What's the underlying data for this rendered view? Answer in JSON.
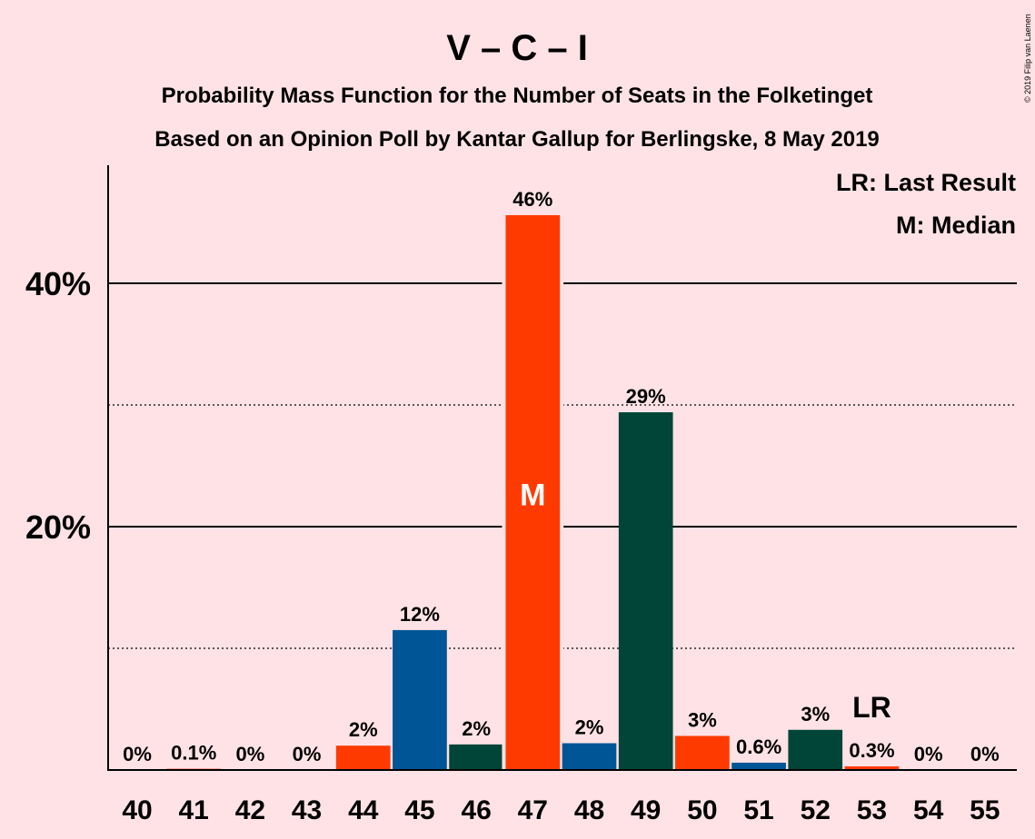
{
  "title": "V – C – I",
  "subtitle1": "Probability Mass Function for the Number of Seats in the Folketinget",
  "subtitle2": "Based on an Opinion Poll by Kantar Gallup for Berlingske, 8 May 2019",
  "copyright": "© 2019 Filip van Laenen",
  "legend": {
    "lr": "LR: Last Result",
    "median": "M: Median"
  },
  "median_marker": "M",
  "lr_marker": "LR",
  "colors": {
    "background": "#FFE2E6",
    "orange": "#FF3A00",
    "blue": "#005596",
    "green": "#004537"
  },
  "chart_data": {
    "type": "bar",
    "x": [
      40,
      41,
      42,
      43,
      44,
      45,
      46,
      47,
      48,
      49,
      50,
      51,
      52,
      53,
      54,
      55
    ],
    "values": [
      0,
      0.1,
      0,
      0,
      2.0,
      11.5,
      2.1,
      45.6,
      2.2,
      29.4,
      2.8,
      0.6,
      3.3,
      0.3,
      0,
      0
    ],
    "labels": [
      "0%",
      "0.1%",
      "0%",
      "0%",
      "2%",
      "12%",
      "2%",
      "46%",
      "2%",
      "29%",
      "3%",
      "0.6%",
      "3%",
      "0.3%",
      "0%",
      "0%"
    ],
    "bar_colors": [
      "orange",
      "orange",
      "orange",
      "orange",
      "orange",
      "blue",
      "green",
      "orange",
      "blue",
      "green",
      "orange",
      "blue",
      "green",
      "orange",
      "orange",
      "orange"
    ],
    "median": 47,
    "last_result": 53,
    "ylim": [
      0,
      50
    ],
    "yticks": [
      {
        "value": 40,
        "label": "40%",
        "major": true
      },
      {
        "value": 30,
        "label": "",
        "major": false
      },
      {
        "value": 20,
        "label": "20%",
        "major": true
      },
      {
        "value": 10,
        "label": "",
        "major": false
      }
    ],
    "grid": true,
    "legend_position": "top-right"
  }
}
